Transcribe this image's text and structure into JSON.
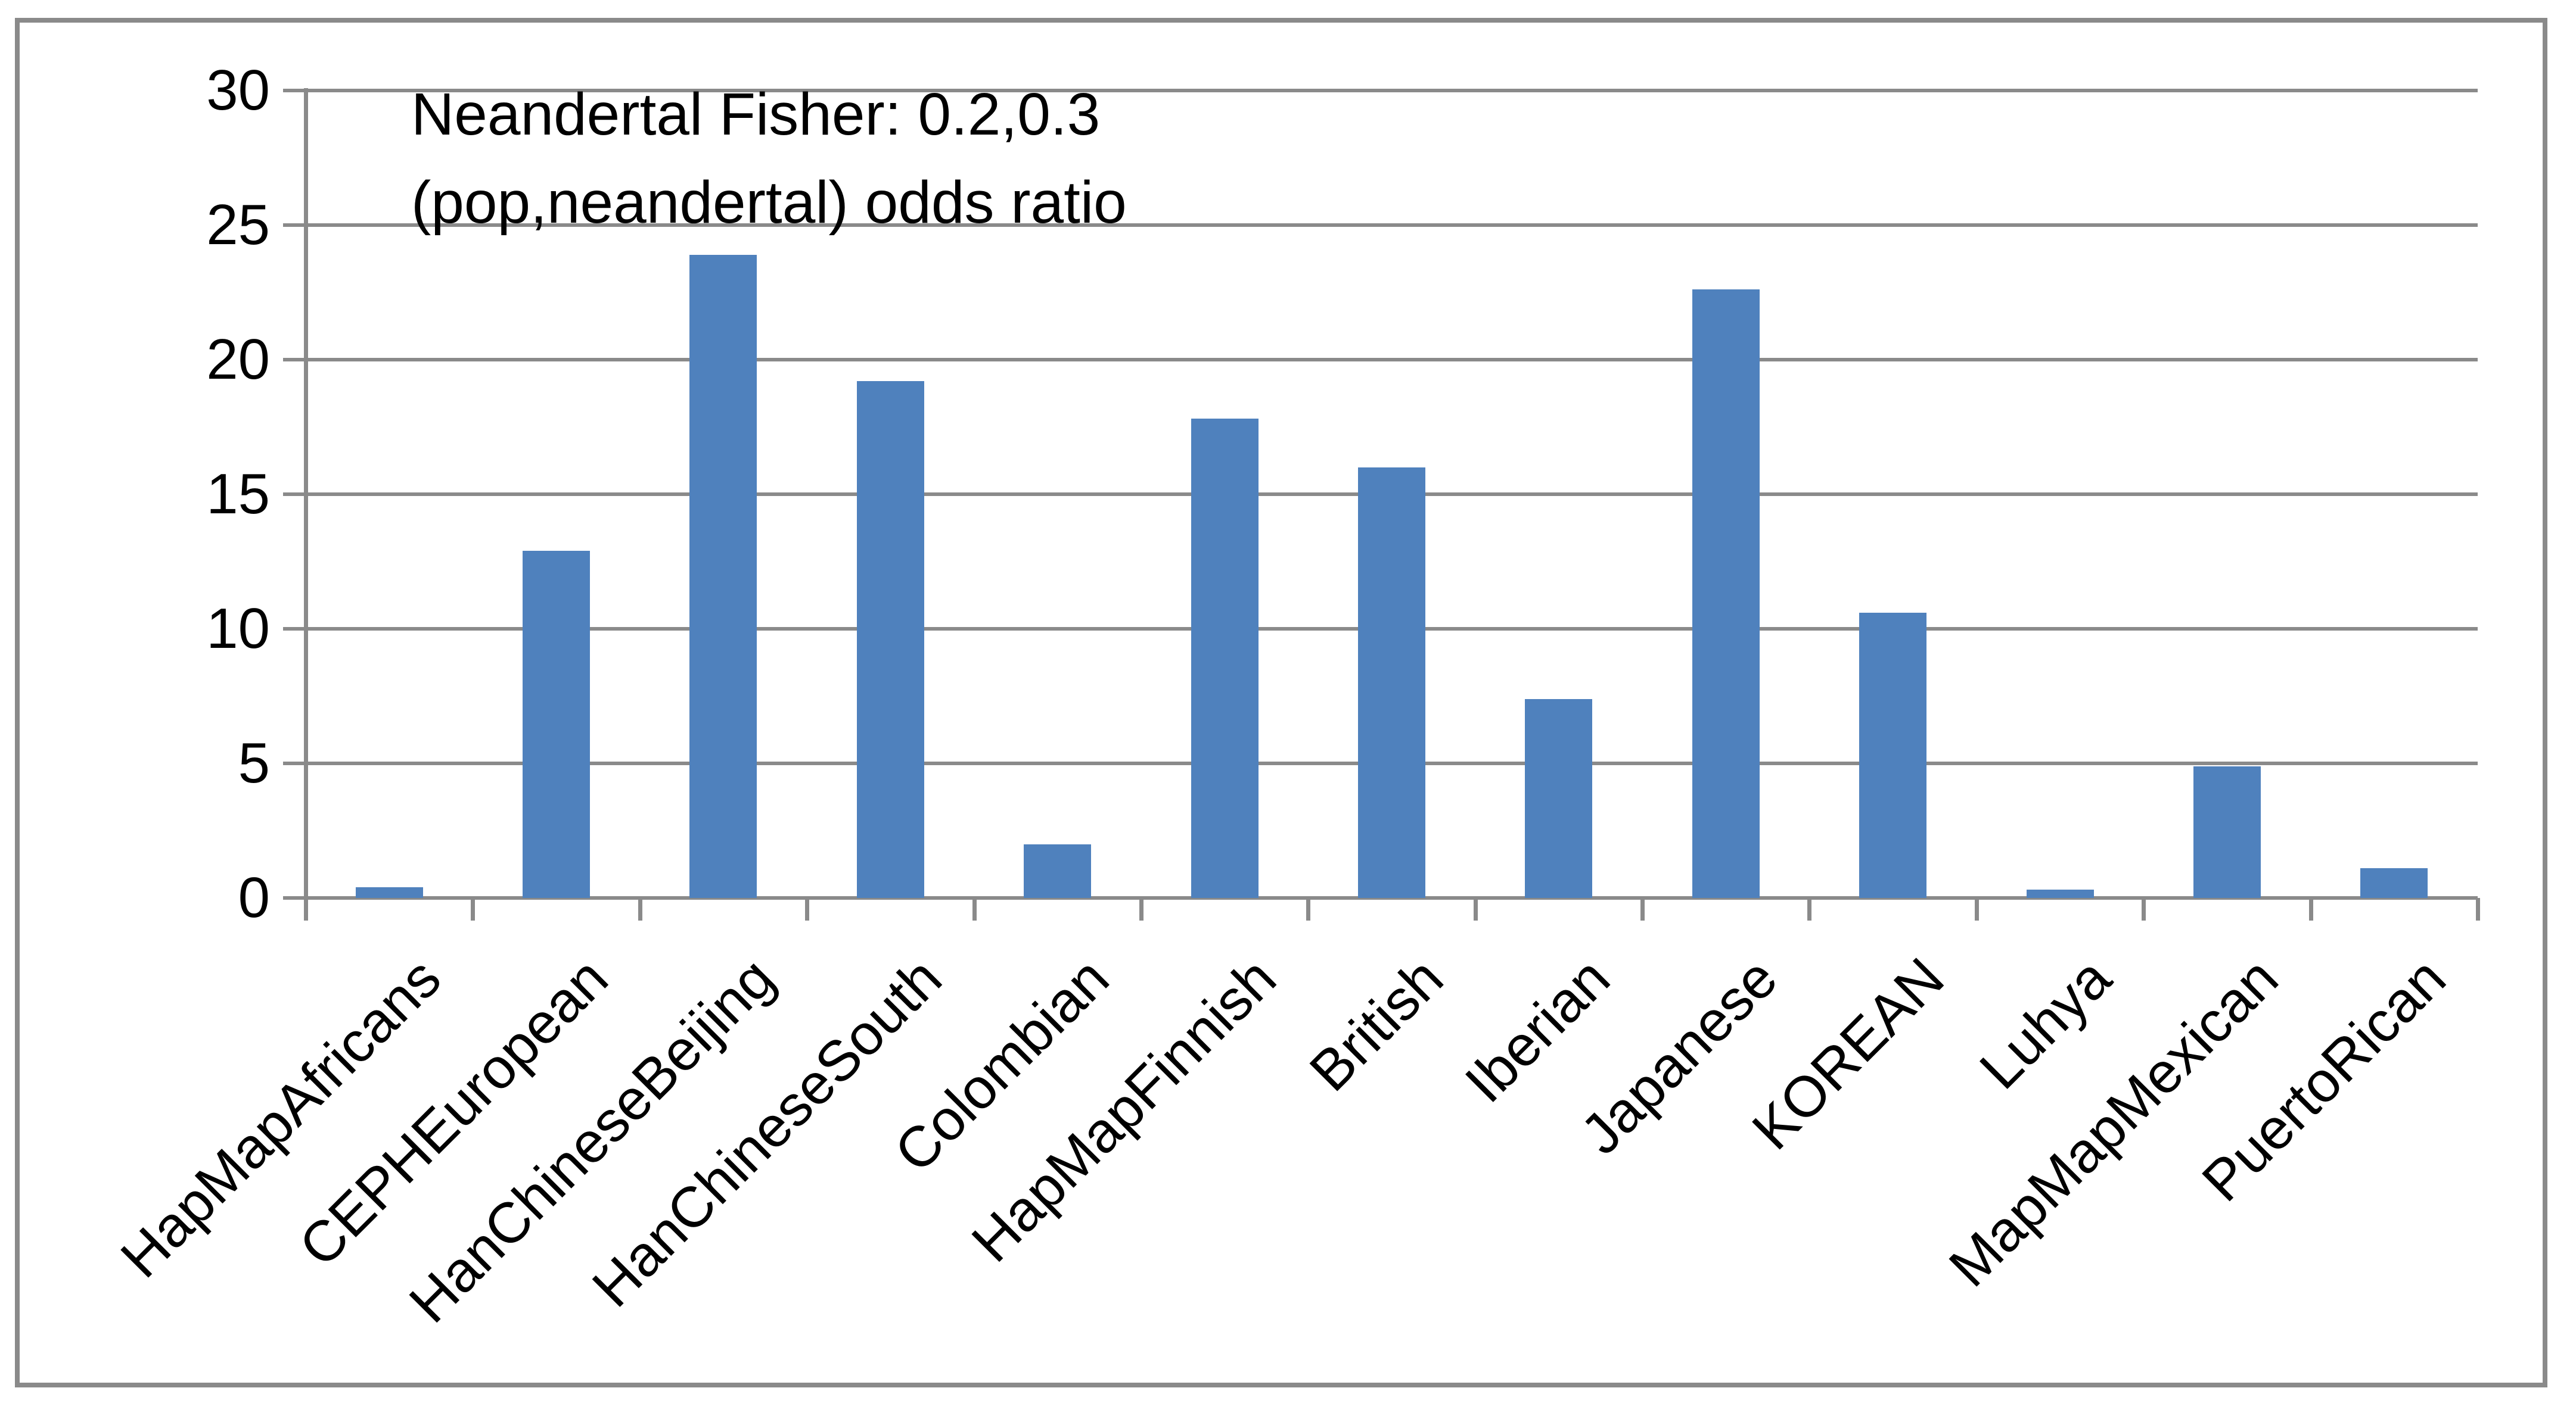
{
  "figure": {
    "title_line1": "Neandertal Fisher: 0.2,0.3",
    "title_line2": "(pop,neandertal) odds ratio"
  },
  "chart_data": {
    "type": "bar",
    "title": "Neandertal Fisher: 0.2,0.3 (pop,neandertal) odds ratio",
    "categories": [
      "HapMapAfricans",
      "CEPHEuropean",
      "HanChineseBeijing",
      "HanChineseSouth",
      "Colombian",
      "HapMapFinnish",
      "British",
      "Iberian",
      "Japanese",
      "KOREAN",
      "Luhya",
      "MapMapMexican",
      "PuertoRican"
    ],
    "values": [
      0.4,
      12.9,
      23.9,
      19.2,
      2.0,
      17.8,
      16.0,
      7.4,
      22.6,
      10.6,
      0.3,
      4.9,
      1.1
    ],
    "xlabel": "",
    "ylabel": "",
    "ylim": [
      0,
      30
    ],
    "yticks": [
      0,
      5,
      10,
      15,
      20,
      25,
      30
    ],
    "grid": true,
    "legend": false,
    "bar_color": "#4F81BD",
    "grid_color": "#8A8A8A",
    "text_color": "#000000",
    "background_color": "#FFFFFF"
  }
}
